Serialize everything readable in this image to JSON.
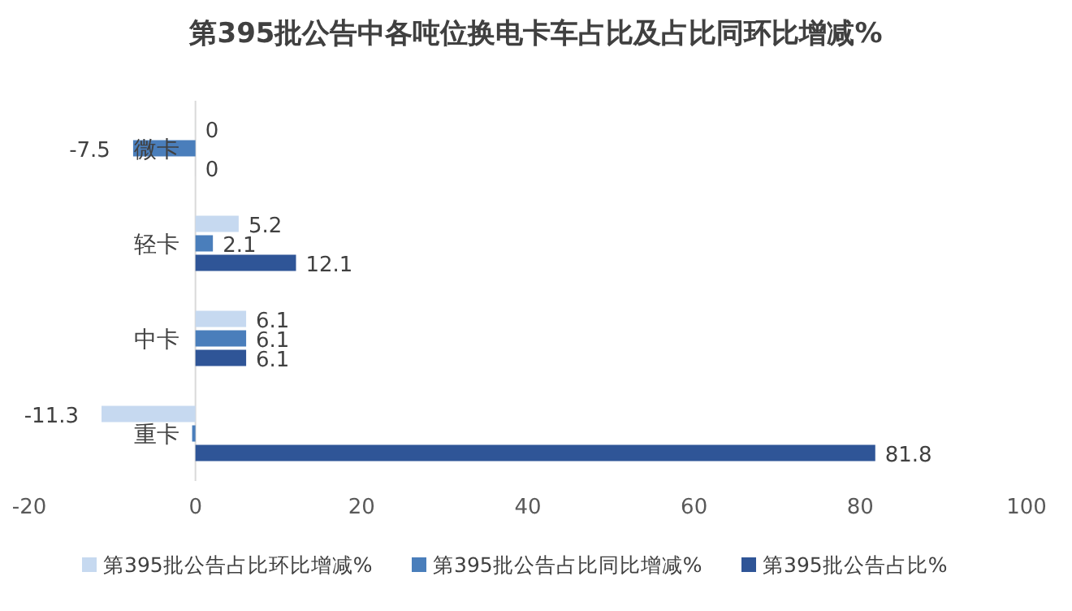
{
  "chart_data": {
    "type": "bar",
    "orientation": "horizontal",
    "title": "第395批公告中各吨位换电卡车占比及占比同环比增减%",
    "categories": [
      "微卡",
      "轻卡",
      "中卡",
      "重卡"
    ],
    "series": [
      {
        "name": "第395批公告占比环比增减%",
        "color": "#c6d9f0",
        "values": [
          0,
          5.2,
          6.1,
          -11.3
        ],
        "value_labels": [
          "0",
          "5.2",
          "6.1",
          "-11.3"
        ]
      },
      {
        "name": "第395批公告占比同比增减%",
        "color": "#4a7ebb",
        "values": [
          -7.5,
          2.1,
          6.1,
          -0.4
        ],
        "value_labels": [
          "-7.5",
          "2.1",
          "6.1",
          null
        ]
      },
      {
        "name": "第395批公告占比%",
        "color": "#2f5597",
        "values": [
          0,
          12.1,
          6.1,
          81.8
        ],
        "value_labels": [
          "0",
          "12.1",
          "6.1",
          "81.8"
        ]
      }
    ],
    "xlim": [
      -20,
      100
    ],
    "xticks": [
      -20,
      0,
      20,
      40,
      60,
      80,
      100
    ],
    "grid": false,
    "legend": "bottom"
  }
}
